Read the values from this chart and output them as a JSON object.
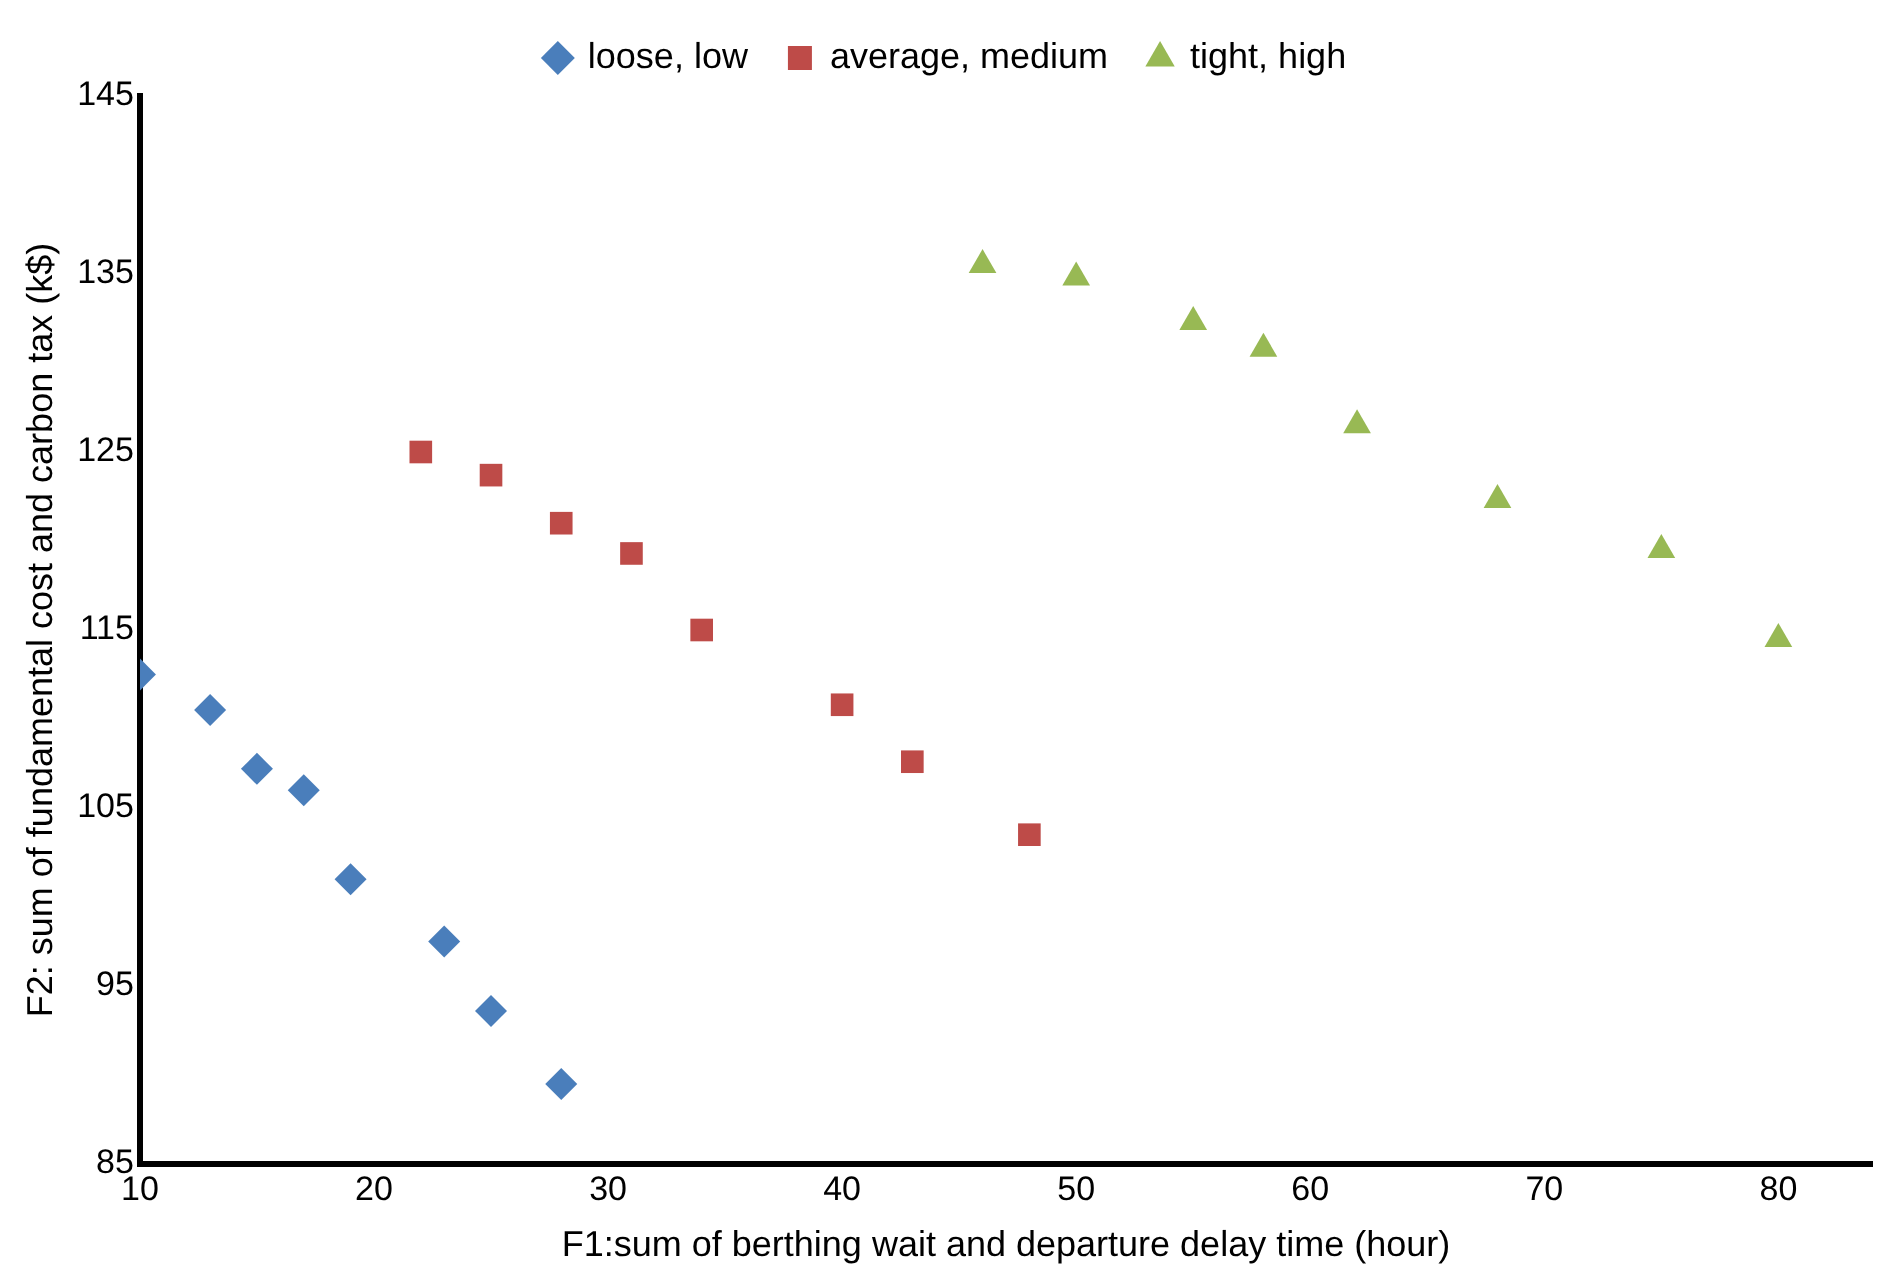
{
  "chart_data": {
    "type": "scatter",
    "xlabel": "F1:sum of berthing wait and departure delay time (hour)",
    "ylabel": "F2: sum of fundamental cost and carbon tax (k$)",
    "xlim": [
      10,
      84
    ],
    "xticks": [
      10,
      20,
      30,
      40,
      50,
      60,
      70,
      80
    ],
    "ylim": [
      85,
      145
    ],
    "yticks": [
      85,
      95,
      105,
      115,
      125,
      135,
      145
    ],
    "grid": false,
    "legend": "top",
    "series": [
      {
        "name": "loose, low",
        "color": "#4a7ebb",
        "marker": "diamond",
        "x": [
          10,
          13,
          15,
          17,
          19,
          23,
          25,
          28
        ],
        "values": [
          112.5,
          110.5,
          107.2,
          106,
          101,
          97.5,
          93.6,
          89.5
        ]
      },
      {
        "name": "average, medium",
        "color": "#be4b48",
        "marker": "square",
        "x": [
          22,
          25,
          28,
          31,
          34,
          40,
          43,
          48
        ],
        "values": [
          125,
          123.7,
          121,
          119.3,
          115,
          110.8,
          107.6,
          103.5
        ]
      },
      {
        "name": "tight, high",
        "color": "#98b954",
        "marker": "triangle",
        "x": [
          46,
          50,
          55,
          58,
          62,
          68,
          75,
          80
        ],
        "values": [
          135.5,
          134.8,
          132.3,
          130.8,
          126.5,
          122.3,
          119.5,
          114.5
        ]
      }
    ]
  }
}
